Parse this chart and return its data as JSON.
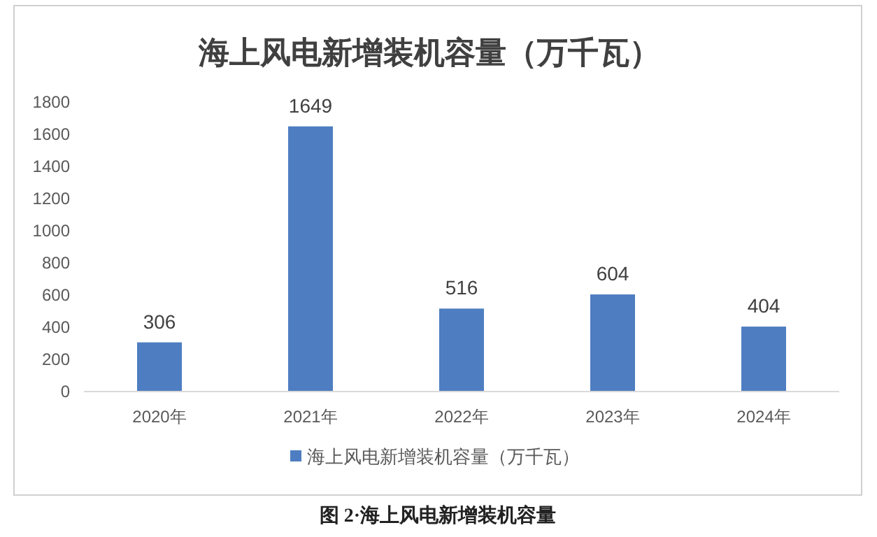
{
  "chart_data": {
    "type": "bar",
    "title": "海上风电新增装机容量（万千瓦）",
    "categories": [
      "2020年",
      "2021年",
      "2022年",
      "2023年",
      "2024年"
    ],
    "series": [
      {
        "name": "海上风电新增装机容量（万千瓦）",
        "color": "#4e7ec1",
        "values": [
          306,
          1649,
          516,
          604,
          404
        ]
      }
    ],
    "ylim": [
      0,
      1800
    ],
    "yticks": [
      0,
      200,
      400,
      600,
      800,
      1000,
      1200,
      1400,
      1600,
      1800
    ],
    "data_labels": true,
    "legend": "bottom",
    "grid": false,
    "annotations": [
      "图 2·海上风电新增装机容量"
    ]
  }
}
